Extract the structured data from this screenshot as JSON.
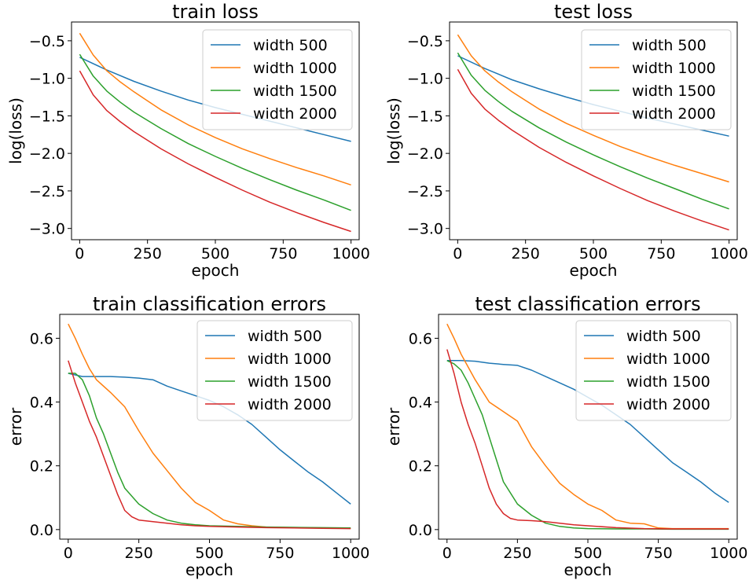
{
  "colors": {
    "width 500": "#1f77b4",
    "width 1000": "#ff7f0e",
    "width 1500": "#2ca02c",
    "width 2000": "#d62728"
  },
  "chart_data": [
    {
      "type": "line",
      "title": "train loss",
      "xlabel": "epoch",
      "ylabel": "log(loss)",
      "xlim": [
        -30,
        1030
      ],
      "ylim": [
        -3.15,
        -0.25
      ],
      "xticks": [
        0,
        250,
        500,
        750,
        1000
      ],
      "yticks": [
        -3.0,
        -2.5,
        -2.0,
        -1.5,
        -1.0,
        -0.5
      ],
      "ytick_labels": [
        "−3.0",
        "−2.5",
        "−2.0",
        "−1.5",
        "−1.0",
        "−0.5"
      ],
      "legend_position": "top-right",
      "grid": false,
      "series": [
        {
          "name": "width 500",
          "x": [
            0,
            100,
            200,
            300,
            400,
            500,
            600,
            700,
            800,
            900,
            1000
          ],
          "y": [
            -0.72,
            -0.89,
            -1.04,
            -1.17,
            -1.29,
            -1.39,
            -1.48,
            -1.57,
            -1.66,
            -1.75,
            -1.84
          ]
        },
        {
          "name": "width 1000",
          "x": [
            0,
            50,
            100,
            150,
            200,
            300,
            400,
            500,
            600,
            700,
            800,
            900,
            1000
          ],
          "y": [
            -0.4,
            -0.69,
            -0.9,
            -1.05,
            -1.18,
            -1.42,
            -1.62,
            -1.79,
            -1.94,
            -2.07,
            -2.19,
            -2.3,
            -2.42
          ]
        },
        {
          "name": "width 1500",
          "x": [
            0,
            50,
            100,
            150,
            200,
            300,
            400,
            500,
            600,
            700,
            800,
            900,
            1000
          ],
          "y": [
            -0.68,
            -0.97,
            -1.17,
            -1.32,
            -1.45,
            -1.67,
            -1.87,
            -2.04,
            -2.2,
            -2.35,
            -2.49,
            -2.62,
            -2.76
          ]
        },
        {
          "name": "width 2000",
          "x": [
            0,
            50,
            100,
            150,
            200,
            300,
            400,
            500,
            600,
            700,
            800,
            900,
            1000
          ],
          "y": [
            -0.9,
            -1.22,
            -1.43,
            -1.58,
            -1.71,
            -1.94,
            -2.14,
            -2.32,
            -2.49,
            -2.65,
            -2.79,
            -2.92,
            -3.04
          ]
        }
      ]
    },
    {
      "type": "line",
      "title": "test loss",
      "xlabel": "epoch",
      "ylabel": "log(loss)",
      "xlim": [
        -30,
        1030
      ],
      "ylim": [
        -3.15,
        -0.25
      ],
      "xticks": [
        0,
        250,
        500,
        750,
        1000
      ],
      "yticks": [
        -3.0,
        -2.5,
        -2.0,
        -1.5,
        -1.0,
        -0.5
      ],
      "ytick_labels": [
        "−3.0",
        "−2.5",
        "−2.0",
        "−1.5",
        "−1.0",
        "−0.5"
      ],
      "legend_position": "top-right",
      "grid": false,
      "series": [
        {
          "name": "width 500",
          "x": [
            0,
            100,
            200,
            300,
            400,
            500,
            600,
            700,
            800,
            900,
            1000
          ],
          "y": [
            -0.7,
            -0.87,
            -1.02,
            -1.14,
            -1.25,
            -1.35,
            -1.44,
            -1.53,
            -1.61,
            -1.69,
            -1.77
          ]
        },
        {
          "name": "width 1000",
          "x": [
            0,
            50,
            100,
            150,
            200,
            300,
            400,
            500,
            600,
            700,
            800,
            900,
            1000
          ],
          "y": [
            -0.42,
            -0.7,
            -0.9,
            -1.05,
            -1.18,
            -1.41,
            -1.6,
            -1.76,
            -1.91,
            -2.04,
            -2.16,
            -2.27,
            -2.38
          ]
        },
        {
          "name": "width 1500",
          "x": [
            0,
            50,
            100,
            150,
            200,
            300,
            400,
            500,
            600,
            700,
            800,
            900,
            1000
          ],
          "y": [
            -0.66,
            -0.96,
            -1.16,
            -1.31,
            -1.44,
            -1.66,
            -1.85,
            -2.02,
            -2.18,
            -2.33,
            -2.47,
            -2.61,
            -2.74
          ]
        },
        {
          "name": "width 2000",
          "x": [
            0,
            50,
            100,
            150,
            200,
            300,
            400,
            500,
            600,
            700,
            800,
            900,
            1000
          ],
          "y": [
            -0.88,
            -1.2,
            -1.41,
            -1.56,
            -1.69,
            -1.92,
            -2.12,
            -2.3,
            -2.47,
            -2.63,
            -2.77,
            -2.9,
            -3.02
          ]
        }
      ]
    },
    {
      "type": "line",
      "title": "train classification errors",
      "xlabel": "epoch",
      "ylabel": "error",
      "xlim": [
        -30,
        1030
      ],
      "ylim": [
        -0.03,
        0.675
      ],
      "xticks": [
        0,
        250,
        500,
        750,
        1000
      ],
      "yticks": [
        0.0,
        0.2,
        0.4,
        0.6
      ],
      "ytick_labels": [
        "0.0",
        "0.2",
        "0.4",
        "0.6"
      ],
      "legend_position": "top-right",
      "grid": false,
      "series": [
        {
          "name": "width 500",
          "x": [
            0,
            50,
            100,
            150,
            200,
            250,
            300,
            350,
            400,
            450,
            500,
            550,
            600,
            650,
            700,
            750,
            800,
            850,
            900,
            950,
            1000
          ],
          "y": [
            0.49,
            0.48,
            0.48,
            0.48,
            0.478,
            0.475,
            0.47,
            0.45,
            0.435,
            0.42,
            0.405,
            0.385,
            0.36,
            0.33,
            0.29,
            0.25,
            0.215,
            0.18,
            0.15,
            0.115,
            0.08
          ]
        },
        {
          "name": "width 1000",
          "x": [
            0,
            25,
            50,
            75,
            100,
            150,
            200,
            250,
            300,
            350,
            400,
            450,
            500,
            550,
            600,
            650,
            700,
            800,
            900,
            1000
          ],
          "y": [
            0.645,
            0.6,
            0.55,
            0.505,
            0.47,
            0.43,
            0.385,
            0.31,
            0.24,
            0.185,
            0.13,
            0.085,
            0.06,
            0.03,
            0.018,
            0.012,
            0.008,
            0.006,
            0.005,
            0.004
          ]
        },
        {
          "name": "width 1500",
          "x": [
            0,
            25,
            50,
            75,
            100,
            125,
            150,
            175,
            200,
            250,
            300,
            350,
            400,
            450,
            500,
            600,
            700,
            800,
            900,
            1000
          ],
          "y": [
            0.49,
            0.49,
            0.47,
            0.42,
            0.35,
            0.3,
            0.24,
            0.18,
            0.13,
            0.08,
            0.05,
            0.03,
            0.02,
            0.015,
            0.012,
            0.01,
            0.008,
            0.007,
            0.006,
            0.005
          ]
        },
        {
          "name": "width 2000",
          "x": [
            0,
            25,
            50,
            75,
            100,
            125,
            150,
            175,
            200,
            225,
            250,
            300,
            350,
            400,
            450,
            500,
            600,
            700,
            800,
            900,
            1000
          ],
          "y": [
            0.53,
            0.46,
            0.4,
            0.34,
            0.29,
            0.23,
            0.17,
            0.11,
            0.06,
            0.04,
            0.03,
            0.025,
            0.02,
            0.015,
            0.012,
            0.01,
            0.008,
            0.006,
            0.005,
            0.004,
            0.003
          ]
        }
      ]
    },
    {
      "type": "line",
      "title": "test classification errors",
      "xlabel": "epoch",
      "ylabel": "error",
      "xlim": [
        -30,
        1030
      ],
      "ylim": [
        -0.03,
        0.675
      ],
      "xticks": [
        0,
        250,
        500,
        750,
        1000
      ],
      "yticks": [
        0.0,
        0.2,
        0.4,
        0.6
      ],
      "ytick_labels": [
        "0.0",
        "0.2",
        "0.4",
        "0.6"
      ],
      "legend_position": "top-right",
      "grid": false,
      "series": [
        {
          "name": "width 500",
          "x": [
            0,
            50,
            100,
            150,
            200,
            250,
            300,
            350,
            400,
            450,
            500,
            550,
            600,
            650,
            700,
            750,
            800,
            850,
            900,
            950,
            1000
          ],
          "y": [
            0.53,
            0.53,
            0.528,
            0.522,
            0.518,
            0.515,
            0.5,
            0.48,
            0.46,
            0.44,
            0.415,
            0.39,
            0.36,
            0.33,
            0.29,
            0.25,
            0.21,
            0.18,
            0.15,
            0.115,
            0.085
          ]
        },
        {
          "name": "width 1000",
          "x": [
            0,
            25,
            50,
            75,
            100,
            150,
            200,
            250,
            300,
            350,
            400,
            450,
            500,
            550,
            600,
            650,
            700,
            750,
            800,
            900,
            1000
          ],
          "y": [
            0.645,
            0.6,
            0.55,
            0.51,
            0.47,
            0.4,
            0.37,
            0.34,
            0.26,
            0.2,
            0.145,
            0.11,
            0.08,
            0.06,
            0.03,
            0.02,
            0.018,
            0.005,
            0.003,
            0.003,
            0.003
          ]
        },
        {
          "name": "width 1500",
          "x": [
            0,
            25,
            50,
            75,
            100,
            125,
            150,
            175,
            200,
            250,
            300,
            350,
            400,
            450,
            500,
            600,
            700,
            800,
            900,
            1000
          ],
          "y": [
            0.53,
            0.52,
            0.5,
            0.46,
            0.41,
            0.36,
            0.29,
            0.22,
            0.15,
            0.08,
            0.045,
            0.02,
            0.01,
            0.005,
            0.003,
            0.002,
            0.002,
            0.001,
            0.001,
            0.001
          ]
        },
        {
          "name": "width 2000",
          "x": [
            0,
            25,
            50,
            75,
            100,
            125,
            150,
            175,
            200,
            225,
            250,
            300,
            350,
            400,
            450,
            500,
            600,
            700,
            800,
            900,
            1000
          ],
          "y": [
            0.565,
            0.49,
            0.4,
            0.33,
            0.27,
            0.2,
            0.13,
            0.08,
            0.05,
            0.035,
            0.03,
            0.028,
            0.025,
            0.02,
            0.015,
            0.012,
            0.006,
            0.003,
            0.002,
            0.002,
            0.002
          ]
        }
      ]
    }
  ]
}
